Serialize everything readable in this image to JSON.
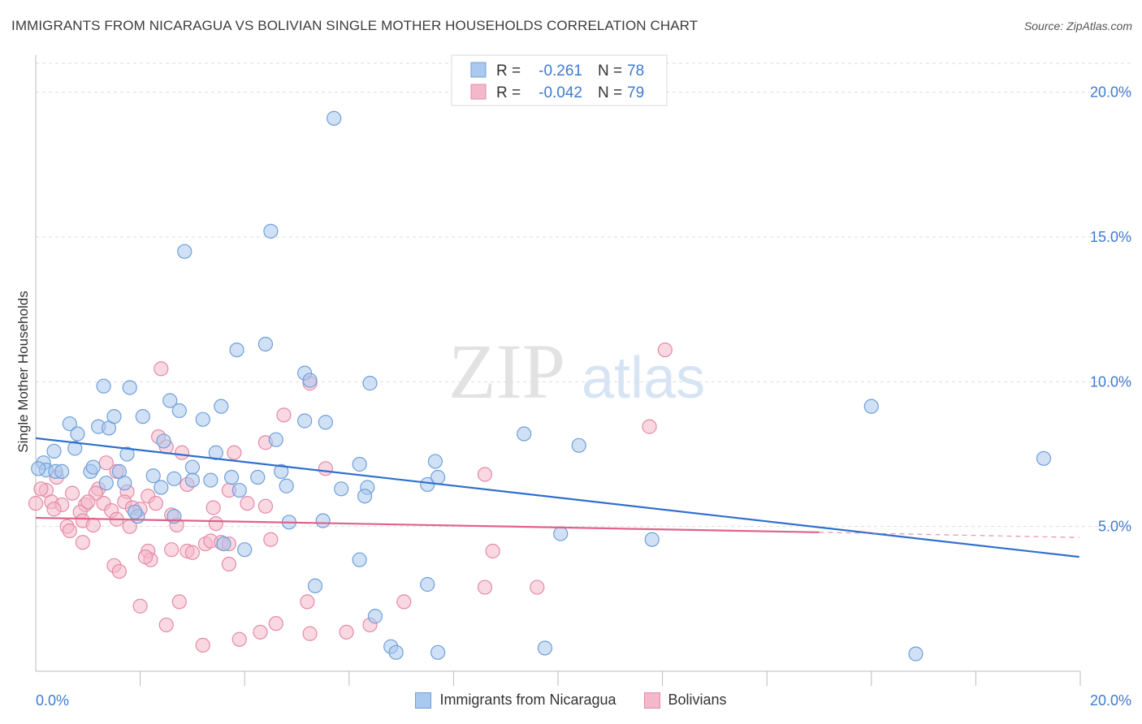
{
  "title": "IMMIGRANTS FROM NICARAGUA VS BOLIVIAN SINGLE MOTHER HOUSEHOLDS CORRELATION CHART",
  "source": "Source: ZipAtlas.com",
  "watermark": {
    "zip": "ZIP",
    "atlas": "atlas"
  },
  "colors": {
    "blue_fill": "#a9c9ef",
    "blue_stroke": "#6f9fd8",
    "blue_line": "#2f6fce",
    "pink_fill": "#f4b8cb",
    "pink_stroke": "#e58aa7",
    "pink_line": "#e0628a",
    "tick_text": "#3e7bd1",
    "grid": "#dddddd"
  },
  "legend_stats": [
    {
      "r_label": "R =",
      "r_value": "-0.261",
      "n_label": "N =",
      "n_value": "78"
    },
    {
      "r_label": "R =",
      "r_value": "-0.042",
      "n_label": "N =",
      "n_value": "79"
    }
  ],
  "chart_data": {
    "type": "scatter",
    "title": "IMMIGRANTS FROM NICARAGUA VS BOLIVIAN SINGLE MOTHER HOUSEHOLDS CORRELATION CHART",
    "xlabel": "",
    "ylabel": "Single Mother Households",
    "xlim": [
      0,
      20
    ],
    "ylim": [
      0,
      21
    ],
    "x_tick_labels": [
      "0.0%",
      "20.0%"
    ],
    "y_ticks": [
      5,
      10,
      15,
      20
    ],
    "y_tick_labels": [
      "5.0%",
      "10.0%",
      "15.0%",
      "20.0%"
    ],
    "grid": true,
    "legend_position": "bottom",
    "series": [
      {
        "name": "Immigrants from Nicaragua",
        "trend": {
          "x": [
            0.0,
            19.98
          ],
          "y": [
            8.05,
            3.95
          ]
        },
        "points": [
          [
            5.71,
            19.1
          ],
          [
            4.5,
            15.2
          ],
          [
            2.85,
            14.5
          ],
          [
            3.85,
            11.1
          ],
          [
            4.4,
            11.3
          ],
          [
            5.15,
            10.3
          ],
          [
            5.25,
            10.05
          ],
          [
            6.4,
            9.95
          ],
          [
            1.3,
            9.85
          ],
          [
            1.8,
            9.8
          ],
          [
            2.57,
            9.35
          ],
          [
            3.55,
            9.15
          ],
          [
            2.75,
            9.0
          ],
          [
            0.65,
            8.55
          ],
          [
            1.2,
            8.45
          ],
          [
            1.4,
            8.4
          ],
          [
            1.5,
            8.8
          ],
          [
            2.05,
            8.8
          ],
          [
            3.2,
            8.7
          ],
          [
            5.15,
            8.65
          ],
          [
            5.55,
            8.6
          ],
          [
            4.6,
            8.0
          ],
          [
            2.45,
            7.95
          ],
          [
            0.8,
            8.2
          ],
          [
            0.35,
            7.6
          ],
          [
            0.75,
            7.7
          ],
          [
            1.75,
            7.5
          ],
          [
            3.45,
            7.55
          ],
          [
            0.15,
            7.2
          ],
          [
            0.2,
            6.95
          ],
          [
            0.38,
            6.9
          ],
          [
            0.5,
            6.9
          ],
          [
            1.05,
            6.9
          ],
          [
            1.1,
            7.05
          ],
          [
            1.6,
            6.9
          ],
          [
            2.25,
            6.75
          ],
          [
            2.65,
            6.65
          ],
          [
            3.0,
            7.05
          ],
          [
            3.35,
            6.6
          ],
          [
            3.75,
            6.7
          ],
          [
            4.25,
            6.7
          ],
          [
            4.7,
            6.9
          ],
          [
            6.2,
            7.15
          ],
          [
            7.65,
            7.25
          ],
          [
            9.35,
            8.2
          ],
          [
            10.4,
            7.8
          ],
          [
            1.35,
            6.5
          ],
          [
            1.7,
            6.5
          ],
          [
            2.4,
            6.35
          ],
          [
            3.9,
            6.25
          ],
          [
            4.8,
            6.4
          ],
          [
            5.85,
            6.3
          ],
          [
            6.35,
            6.35
          ],
          [
            6.3,
            6.05
          ],
          [
            7.5,
            6.45
          ],
          [
            1.95,
            5.35
          ],
          [
            2.65,
            5.35
          ],
          [
            4.85,
            5.15
          ],
          [
            5.5,
            5.2
          ],
          [
            3.6,
            4.4
          ],
          [
            4.0,
            4.2
          ],
          [
            10.05,
            4.75
          ],
          [
            11.8,
            4.55
          ],
          [
            6.2,
            3.85
          ],
          [
            5.35,
            2.95
          ],
          [
            7.5,
            3.0
          ],
          [
            6.5,
            1.9
          ],
          [
            6.8,
            0.85
          ],
          [
            6.9,
            0.65
          ],
          [
            7.7,
            0.65
          ],
          [
            9.75,
            0.8
          ],
          [
            16.85,
            0.6
          ],
          [
            16.0,
            9.15
          ],
          [
            19.3,
            7.35
          ],
          [
            0.05,
            7.0
          ],
          [
            1.9,
            5.5
          ],
          [
            3.0,
            6.6
          ],
          [
            7.7,
            6.7
          ]
        ]
      },
      {
        "name": "Bolivians",
        "trend": {
          "x": [
            0.0,
            15.0
          ],
          "y": [
            5.3,
            4.8
          ]
        },
        "trend_ext": {
          "x": [
            15.0,
            19.98
          ],
          "y": [
            4.8,
            4.62
          ]
        },
        "points": [
          [
            12.05,
            11.1
          ],
          [
            2.4,
            10.45
          ],
          [
            5.25,
            9.95
          ],
          [
            4.75,
            8.85
          ],
          [
            11.75,
            8.45
          ],
          [
            2.35,
            8.1
          ],
          [
            4.4,
            7.9
          ],
          [
            2.5,
            7.75
          ],
          [
            2.8,
            7.55
          ],
          [
            3.8,
            7.55
          ],
          [
            1.35,
            7.2
          ],
          [
            5.55,
            7.0
          ],
          [
            8.6,
            6.8
          ],
          [
            0.4,
            6.7
          ],
          [
            1.55,
            6.9
          ],
          [
            0.2,
            6.25
          ],
          [
            0.7,
            6.15
          ],
          [
            1.2,
            6.3
          ],
          [
            1.75,
            6.2
          ],
          [
            2.15,
            6.05
          ],
          [
            0.3,
            5.85
          ],
          [
            0.5,
            5.75
          ],
          [
            0.95,
            5.75
          ],
          [
            1.15,
            6.15
          ],
          [
            1.3,
            5.8
          ],
          [
            1.7,
            5.85
          ],
          [
            1.85,
            5.65
          ],
          [
            2.3,
            5.8
          ],
          [
            3.4,
            5.65
          ],
          [
            4.05,
            5.8
          ],
          [
            4.4,
            5.7
          ],
          [
            0.35,
            5.6
          ],
          [
            0.85,
            5.5
          ],
          [
            1.45,
            5.55
          ],
          [
            0.9,
            5.2
          ],
          [
            1.55,
            5.25
          ],
          [
            2.6,
            5.4
          ],
          [
            3.45,
            5.1
          ],
          [
            0.6,
            5.0
          ],
          [
            1.1,
            5.05
          ],
          [
            0.65,
            4.85
          ],
          [
            1.8,
            5.0
          ],
          [
            2.7,
            5.05
          ],
          [
            3.25,
            4.4
          ],
          [
            3.35,
            4.5
          ],
          [
            3.55,
            4.45
          ],
          [
            4.5,
            4.55
          ],
          [
            0.9,
            4.45
          ],
          [
            2.15,
            4.15
          ],
          [
            2.6,
            4.2
          ],
          [
            2.9,
            4.15
          ],
          [
            3.0,
            4.1
          ],
          [
            3.7,
            4.4
          ],
          [
            8.75,
            4.15
          ],
          [
            2.2,
            3.85
          ],
          [
            2.1,
            3.95
          ],
          [
            1.5,
            3.65
          ],
          [
            1.6,
            3.45
          ],
          [
            3.7,
            3.7
          ],
          [
            8.6,
            2.9
          ],
          [
            9.6,
            2.9
          ],
          [
            2.75,
            2.4
          ],
          [
            5.2,
            2.4
          ],
          [
            7.05,
            2.4
          ],
          [
            2.0,
            2.25
          ],
          [
            2.5,
            1.6
          ],
          [
            4.6,
            1.65
          ],
          [
            6.4,
            1.6
          ],
          [
            4.3,
            1.35
          ],
          [
            5.25,
            1.3
          ],
          [
            5.95,
            1.35
          ],
          [
            3.9,
            1.1
          ],
          [
            3.2,
            0.9
          ],
          [
            0.0,
            5.8
          ],
          [
            0.1,
            6.3
          ],
          [
            1.0,
            5.85
          ],
          [
            2.0,
            5.6
          ],
          [
            2.9,
            6.45
          ],
          [
            3.7,
            6.25
          ]
        ]
      }
    ]
  }
}
